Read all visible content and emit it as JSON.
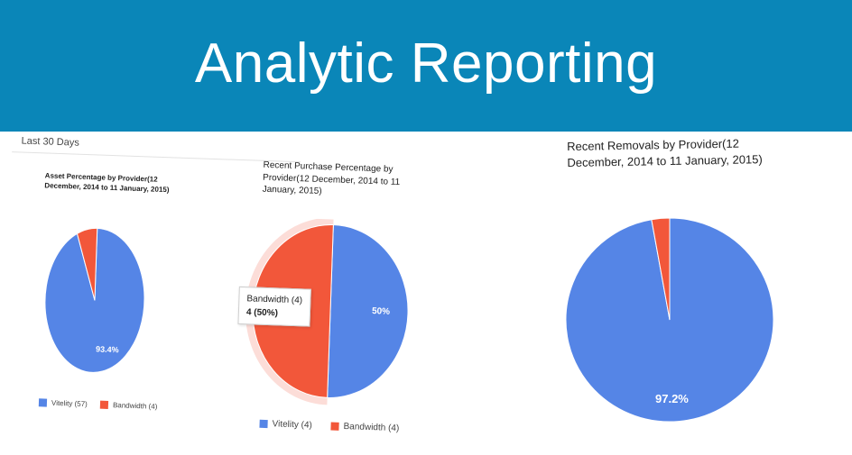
{
  "banner": {
    "title": "Analytic Reporting",
    "bg": "#0a86b8"
  },
  "date_range": "Last 30 Days",
  "colors": {
    "vitelity": "#5585e6",
    "bandwidth": "#f2573a"
  },
  "charts": {
    "asset": {
      "title": "Asset Percentage by Provider(12 December, 2014 to 11 January, 2015)",
      "slice_label": "93.4%",
      "legend": [
        "Vitelity (57)",
        "Bandwidth (4)"
      ]
    },
    "purchase": {
      "title": "Recent Purchase Percentage by Provider(12 December, 2014 to 11 January, 2015)",
      "slice_label": "50%",
      "tooltip_line1": "Bandwidth (4)",
      "tooltip_line2": "4 (50%)",
      "legend": [
        "Vitelity (4)",
        "Bandwidth (4)"
      ]
    },
    "removals": {
      "title": "Recent Removals by Provider(12 December, 2014 to 11 January, 2015)",
      "slice_label": "97.2%"
    }
  },
  "chart_data": [
    {
      "type": "pie",
      "title": "Asset Percentage by Provider(12 December, 2014 to 11 January, 2015)",
      "categories": [
        "Vitelity",
        "Bandwidth"
      ],
      "values": [
        57,
        4
      ],
      "percent_labels": [
        "93.4%",
        ""
      ],
      "legend": "bottom"
    },
    {
      "type": "pie",
      "title": "Recent Purchase Percentage by Provider(12 December, 2014 to 11 January, 2015)",
      "categories": [
        "Vitelity",
        "Bandwidth"
      ],
      "values": [
        4,
        4
      ],
      "percent_labels": [
        "50%",
        "50%"
      ],
      "highlighted": "Bandwidth",
      "legend": "bottom"
    },
    {
      "type": "pie",
      "title": "Recent Removals by Provider(12 December, 2014 to 11 January, 2015)",
      "categories": [
        "Vitelity",
        "Bandwidth"
      ],
      "percentages": [
        97.2,
        2.8
      ],
      "percent_labels": [
        "97.2%",
        ""
      ]
    }
  ]
}
